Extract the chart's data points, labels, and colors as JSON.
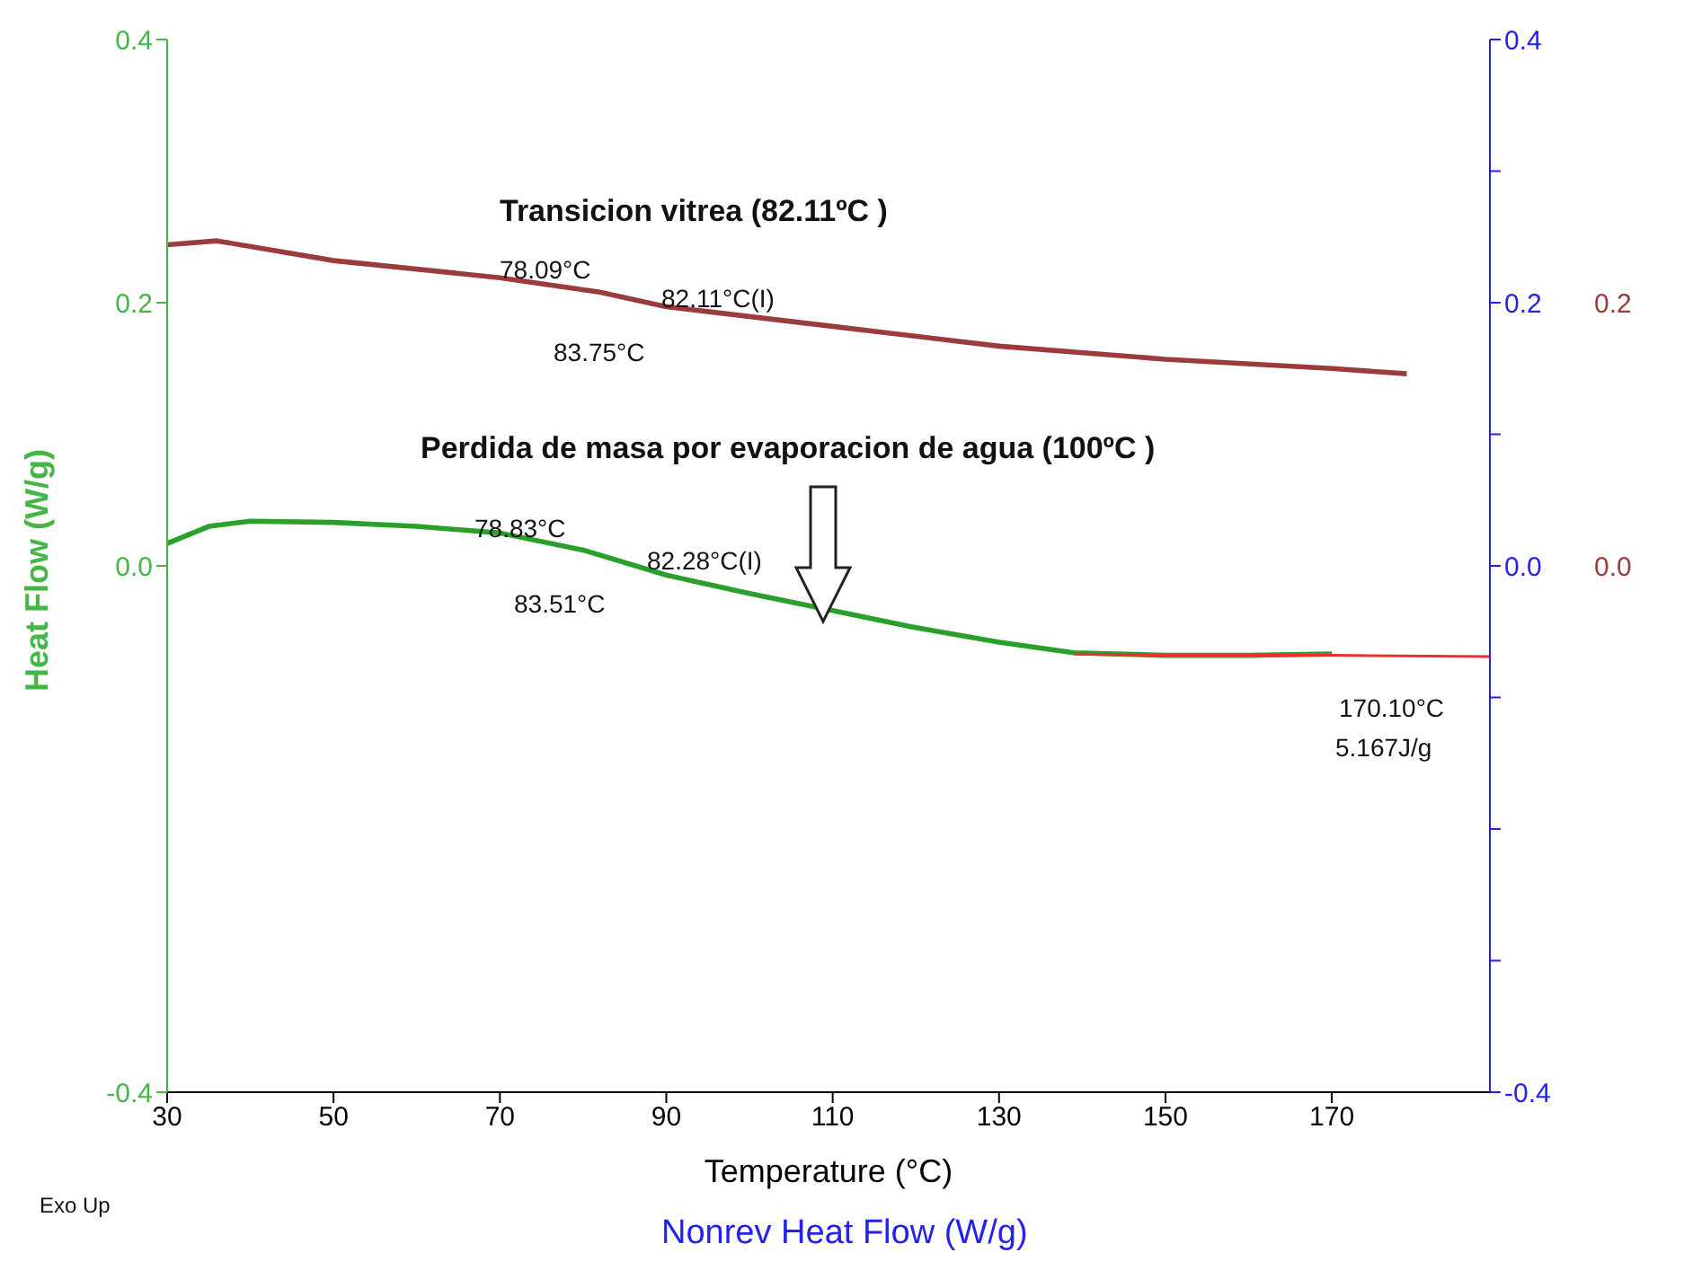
{
  "chart_data": {
    "type": "line",
    "xlabel": "Temperature (°C)",
    "ylabel": "Heat Flow (W/g)",
    "xlim": [
      30,
      189
    ],
    "xticks": [
      30,
      50,
      70,
      90,
      110,
      130,
      150,
      170
    ],
    "ylim": [
      -0.4,
      0.4
    ],
    "yticks": [
      0.4,
      0.2,
      {
        "value": 0,
        "label": "0.0"
      },
      -0.4
    ],
    "y2lim": [
      -0.4,
      0.4
    ],
    "y2ticks": [
      0.4,
      {
        "value": 0.3,
        "label": null
      },
      0.2,
      {
        "value": 0.1,
        "label": null
      },
      {
        "value": 0,
        "label": "0.0"
      },
      {
        "value": -0.1,
        "label": null
      },
      {
        "value": -0.2,
        "label": null
      },
      {
        "value": -0.3,
        "label": null
      },
      -0.4
    ],
    "y3lim": [
      -0.4,
      0.4
    ],
    "y3ticks": [
      0.2,
      {
        "value": 0,
        "label": "0.0"
      }
    ],
    "grid": false,
    "marker": "none",
    "line_style": "solid",
    "series": [
      {
        "color": "#9b3b3b",
        "axis": "y3",
        "x": [
          30,
          36,
          50,
          70,
          82,
          90,
          110,
          130,
          150,
          170,
          179
        ],
        "values": [
          0.244,
          0.247,
          0.232,
          0.219,
          0.208,
          0.197,
          0.182,
          0.167,
          0.157,
          0.15,
          0.146
        ]
      },
      {
        "color": "#2aa02a",
        "x": [
          30,
          35,
          40,
          50,
          60,
          70,
          80,
          90,
          100,
          110,
          120,
          130,
          139,
          150,
          160,
          170
        ],
        "values": [
          0.017,
          0.03,
          0.034,
          0.033,
          0.03,
          0.025,
          0.012,
          -0.007,
          -0.021,
          -0.034,
          -0.047,
          -0.058,
          -0.066,
          -0.068,
          -0.068,
          -0.067
        ]
      },
      {
        "color": "#e83030",
        "x": [
          139,
          150,
          170,
          189
        ],
        "values": [
          -0.067,
          -0.068,
          -0.068,
          -0.069
        ]
      }
    ],
    "annotations": [
      "Transicion vitrea (82.11ºC )",
      "78.09°C",
      "82.11°C(I)",
      "83.75°C",
      "Perdida de masa por evaporacion de agua (100ºC )",
      "78.83°C",
      "82.28°C(I)",
      "83.51°C",
      "170.10°C",
      "5.167J/g",
      "Exo Up",
      "Nonrev Heat Flow (W/g)"
    ]
  }
}
